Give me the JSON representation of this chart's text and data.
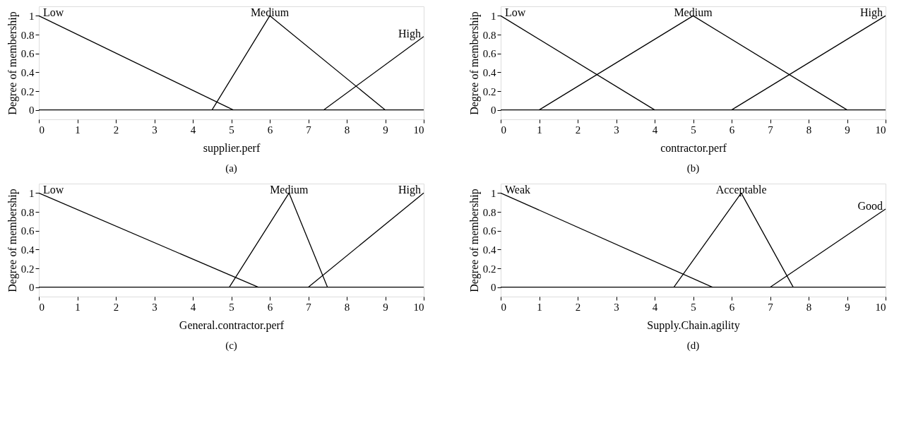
{
  "chart_data": [
    {
      "type": "line",
      "xlabel": "supplier.perf",
      "ylabel": "Degree of membership",
      "annotations": [
        "(a)"
      ],
      "xlim": [
        0,
        10
      ],
      "ylim": [
        -0.1,
        1.1
      ],
      "xticks": [
        0,
        1,
        2,
        3,
        4,
        5,
        6,
        7,
        8,
        9,
        10
      ],
      "yticks": [
        0,
        0.2,
        0.4,
        0.6,
        0.8,
        1
      ],
      "grid": false,
      "legend": false,
      "marker": "none",
      "line_style": "solid",
      "ref_lines": [
        {
          "axis": "y",
          "value": 0,
          "color": "#000000"
        }
      ],
      "series": [
        {
          "name": "Low",
          "color": "#000000",
          "x": [
            0,
            5.05
          ],
          "values": [
            1,
            0
          ]
        },
        {
          "name": "Medium",
          "color": "#000000",
          "x": [
            4.5,
            6,
            9
          ],
          "values": [
            0,
            1,
            0
          ]
        },
        {
          "name": "High",
          "color": "#000000",
          "x": [
            7.4,
            10
          ],
          "values": [
            0,
            0.78
          ]
        }
      ]
    },
    {
      "type": "line",
      "xlabel": "contractor.perf",
      "ylabel": "Degree of membership",
      "annotations": [
        "(b)"
      ],
      "xlim": [
        0,
        10
      ],
      "ylim": [
        -0.1,
        1.1
      ],
      "xticks": [
        0,
        1,
        2,
        3,
        4,
        5,
        6,
        7,
        8,
        9,
        10
      ],
      "yticks": [
        0,
        0.2,
        0.4,
        0.6,
        0.8,
        1
      ],
      "grid": false,
      "legend": false,
      "marker": "none",
      "line_style": "solid",
      "ref_lines": [
        {
          "axis": "y",
          "value": 0,
          "color": "#000000"
        }
      ],
      "series": [
        {
          "name": "Low",
          "color": "#000000",
          "x": [
            0,
            4
          ],
          "values": [
            1,
            0
          ]
        },
        {
          "name": "Medium",
          "color": "#000000",
          "x": [
            1,
            5,
            9
          ],
          "values": [
            0,
            1,
            0
          ]
        },
        {
          "name": "High",
          "color": "#000000",
          "x": [
            6,
            10
          ],
          "values": [
            0,
            1
          ]
        }
      ]
    },
    {
      "type": "line",
      "xlabel": "General.contractor.perf",
      "ylabel": "Degree of membership",
      "annotations": [
        "(c)"
      ],
      "xlim": [
        0,
        10
      ],
      "ylim": [
        -0.1,
        1.1
      ],
      "xticks": [
        0,
        1,
        2,
        3,
        4,
        5,
        6,
        7,
        8,
        9,
        10
      ],
      "yticks": [
        0,
        0.2,
        0.4,
        0.6,
        0.8,
        1
      ],
      "grid": false,
      "legend": false,
      "marker": "none",
      "line_style": "solid",
      "ref_lines": [
        {
          "axis": "y",
          "value": 0,
          "color": "#000000"
        }
      ],
      "series": [
        {
          "name": "Low",
          "color": "#000000",
          "x": [
            0,
            5.7
          ],
          "values": [
            1,
            0
          ]
        },
        {
          "name": "Medium",
          "color": "#000000",
          "x": [
            4.95,
            6.5,
            7.5
          ],
          "values": [
            0,
            1,
            0
          ]
        },
        {
          "name": "High",
          "color": "#000000",
          "x": [
            7,
            10
          ],
          "values": [
            0,
            1
          ]
        }
      ]
    },
    {
      "type": "line",
      "xlabel": "Supply.Chain.agility",
      "ylabel": "Degree of membership",
      "annotations": [
        "(d)"
      ],
      "xlim": [
        0,
        10
      ],
      "ylim": [
        -0.1,
        1.1
      ],
      "xticks": [
        0,
        1,
        2,
        3,
        4,
        5,
        6,
        7,
        8,
        9,
        10
      ],
      "yticks": [
        0,
        0.2,
        0.4,
        0.6,
        0.8,
        1
      ],
      "grid": false,
      "legend": false,
      "marker": "none",
      "line_style": "solid",
      "ref_lines": [
        {
          "axis": "y",
          "value": 0,
          "color": "#000000"
        }
      ],
      "series": [
        {
          "name": "Weak",
          "color": "#000000",
          "x": [
            0,
            5.5
          ],
          "values": [
            1,
            0
          ]
        },
        {
          "name": "Acceptable",
          "color": "#000000",
          "x": [
            4.5,
            6.25,
            7.6
          ],
          "values": [
            0,
            1,
            0
          ]
        },
        {
          "name": "Good",
          "color": "#000000",
          "x": [
            7,
            10
          ],
          "values": [
            0,
            0.83
          ]
        }
      ]
    }
  ]
}
